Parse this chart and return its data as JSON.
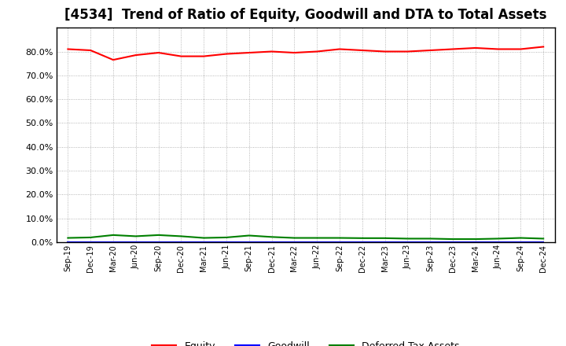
{
  "title": "[4534]  Trend of Ratio of Equity, Goodwill and DTA to Total Assets",
  "x_labels": [
    "Sep-19",
    "Dec-19",
    "Mar-20",
    "Jun-20",
    "Sep-20",
    "Dec-20",
    "Mar-21",
    "Jun-21",
    "Sep-21",
    "Dec-21",
    "Mar-22",
    "Jun-22",
    "Sep-22",
    "Dec-22",
    "Mar-23",
    "Jun-23",
    "Sep-23",
    "Dec-23",
    "Mar-24",
    "Jun-24",
    "Sep-24",
    "Dec-24"
  ],
  "equity": [
    81.0,
    80.5,
    76.5,
    78.5,
    79.5,
    78.0,
    78.0,
    79.0,
    79.5,
    80.0,
    79.5,
    80.0,
    81.0,
    80.5,
    80.0,
    80.0,
    80.5,
    81.0,
    81.5,
    81.0,
    81.0,
    82.0
  ],
  "goodwill": [
    0.0,
    0.0,
    0.0,
    0.0,
    0.0,
    0.0,
    0.0,
    0.0,
    0.0,
    0.0,
    0.0,
    0.0,
    0.0,
    0.0,
    0.0,
    0.0,
    0.0,
    0.0,
    0.0,
    0.0,
    0.0,
    0.0
  ],
  "dta": [
    1.8,
    2.0,
    3.0,
    2.5,
    3.0,
    2.5,
    1.8,
    2.0,
    2.8,
    2.2,
    1.8,
    1.8,
    1.8,
    1.7,
    1.7,
    1.5,
    1.5,
    1.3,
    1.3,
    1.5,
    1.8,
    1.5
  ],
  "equity_color": "#ff0000",
  "goodwill_color": "#0000ff",
  "dta_color": "#008000",
  "ylim": [
    0,
    90
  ],
  "yticks": [
    0,
    10,
    20,
    30,
    40,
    50,
    60,
    70,
    80
  ],
  "background_color": "#ffffff",
  "plot_bg_color": "#ffffff",
  "grid_color": "#999999",
  "title_fontsize": 12,
  "legend_labels": [
    "Equity",
    "Goodwill",
    "Deferred Tax Assets"
  ]
}
